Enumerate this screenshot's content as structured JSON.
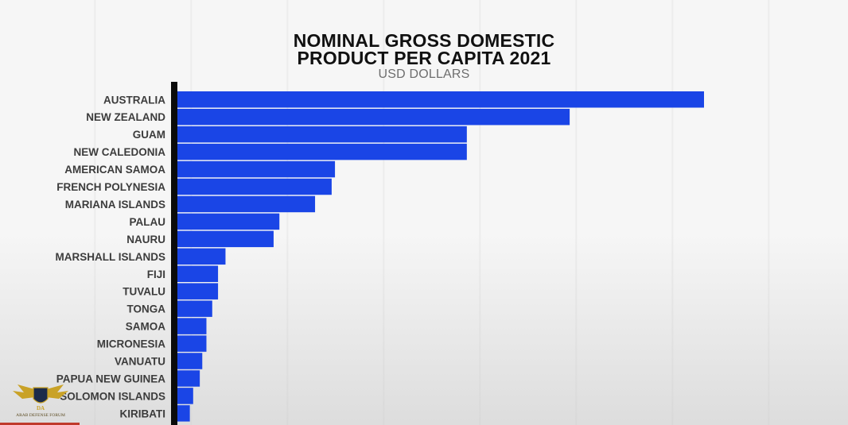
{
  "chart_data": {
    "type": "bar",
    "orientation": "horizontal",
    "title_line1": "NOMINAL GROSS DOMESTIC",
    "title_line2": "PRODUCT PER CAPITA 2021",
    "subtitle": "USD DOLLARS",
    "categories": [
      "AUSTRALIA",
      "NEW ZEALAND",
      "GUAM",
      "NEW CALEDONIA",
      "AMERICAN SAMOA",
      "FRENCH POLYNESIA",
      "MARIANA ISLANDS",
      "PALAU",
      "NAURU",
      "MARSHALL ISLANDS",
      "FIJI",
      "TUVALU",
      "TONGA",
      "SAMOA",
      "MICRONESIA",
      "VANUATU",
      "PAPUA NEW GUINEA",
      "SOLOMON ISLANDS",
      "KIRIBATI"
    ],
    "values": [
      63500,
      47300,
      34900,
      34900,
      19000,
      18600,
      16600,
      12300,
      11600,
      5800,
      4900,
      4900,
      4200,
      3500,
      3500,
      3000,
      2700,
      1900,
      1500
    ],
    "bar_color": "#1a45e6",
    "grid": false,
    "legend": "none"
  },
  "logo": {
    "text": "ARAB DEFENSE FORUM",
    "monogram": "DA",
    "gold": "#c9a227"
  }
}
